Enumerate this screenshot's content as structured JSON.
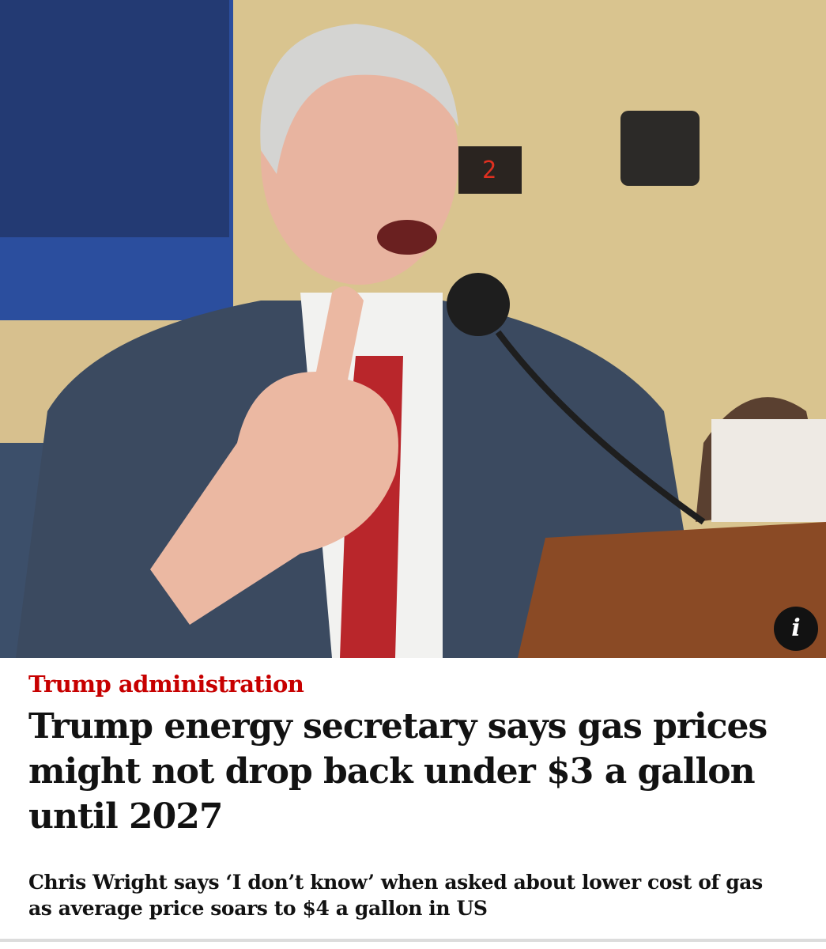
{
  "photo": {
    "info_button": "i"
  },
  "article": {
    "kicker": "Trump administration",
    "headline": "Trump energy secretary says gas prices might not drop back under $3 a gallon until 2027",
    "standfirst": "Chris Wright says ‘I don’t know’ when asked about lower cost of gas as average price soars to $4 a gallon in US"
  }
}
